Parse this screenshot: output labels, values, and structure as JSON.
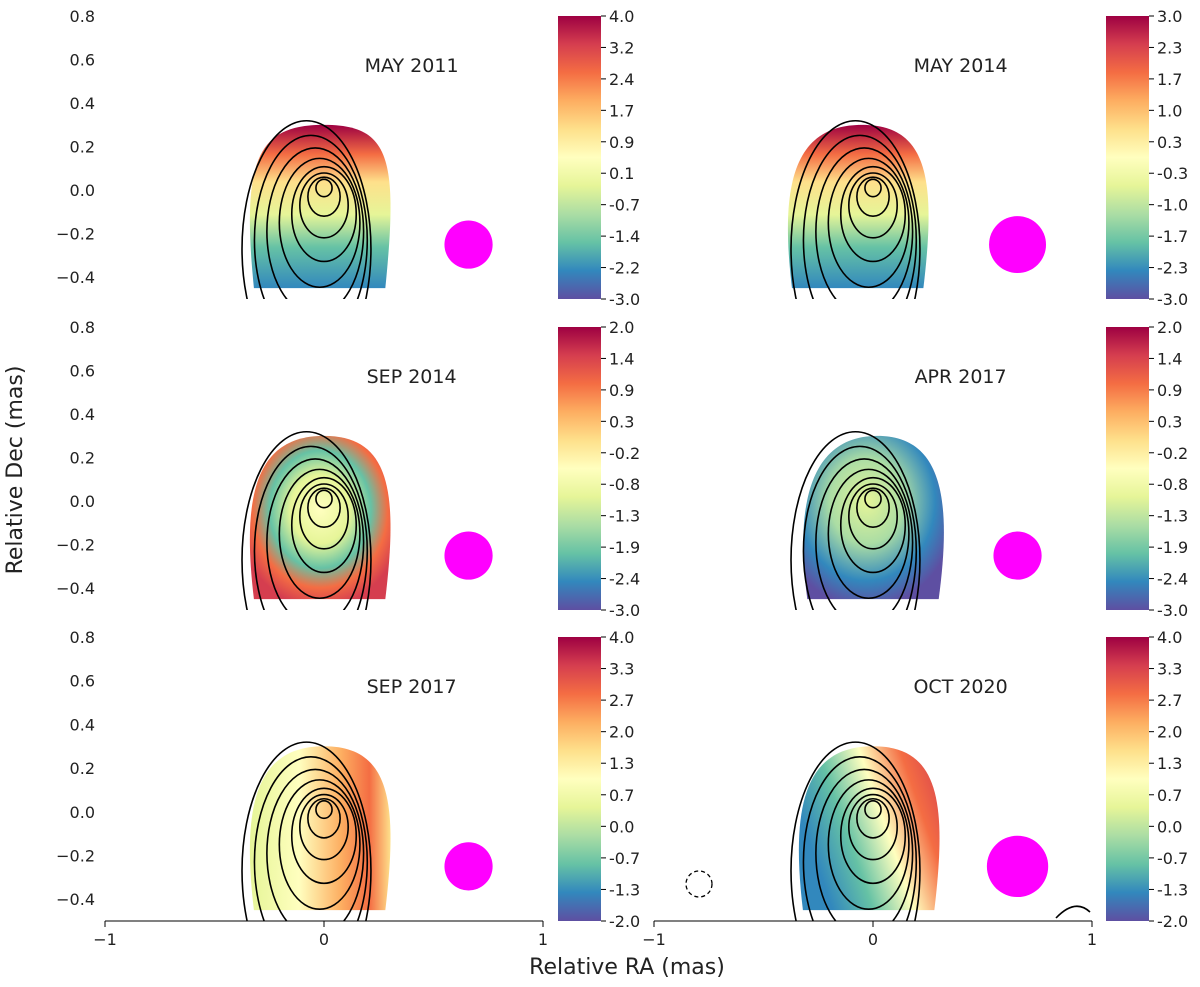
{
  "figure": {
    "xlabel": "Relative RA (mas)",
    "ylabel": "Relative Dec (mas)",
    "colors": {
      "beam": "#ff00ff",
      "contour": "#000000",
      "colormap": [
        "#5e4fa2",
        "#3288bd",
        "#66c2a5",
        "#abdda4",
        "#e6f598",
        "#ffffbf",
        "#fee08b",
        "#fdae61",
        "#f46d43",
        "#d53e4f",
        "#9e0142"
      ]
    }
  },
  "chart_data": [
    {
      "type": "heatmap",
      "title": "MAY 2011",
      "xlim": [
        -1,
        1
      ],
      "ylim": [
        -0.5,
        0.8
      ],
      "xticks": [
        "−1",
        "0",
        "1"
      ],
      "yticks": [
        "0.8",
        "0.6",
        "0.4",
        "0.2",
        "0.0",
        "−0.2",
        "−0.4"
      ],
      "colorbar": {
        "range": [
          -3.0,
          4.0
        ],
        "ticks": [
          "4.0",
          "3.2",
          "2.4",
          "1.7",
          "0.9",
          "0.1",
          "-0.7",
          "-1.4",
          "-2.2",
          "-3.0"
        ]
      },
      "beam": {
        "x": 0.66,
        "y": -0.25,
        "r": 0.11
      },
      "contour_center": [
        0.0,
        0.01
      ],
      "map_center": [
        0.0,
        0.1
      ],
      "map_gradient": "north-hot"
    },
    {
      "type": "heatmap",
      "title": "MAY 2014",
      "xlim": [
        -1,
        1
      ],
      "ylim": [
        -0.5,
        0.8
      ],
      "xticks": [
        "−1",
        "0",
        "1"
      ],
      "yticks": [
        "0.8",
        "0.6",
        "0.4",
        "0.2",
        "0.0",
        "−0.2",
        "−0.4"
      ],
      "colorbar": {
        "range": [
          -3.0,
          3.0
        ],
        "ticks": [
          "3.0",
          "2.3",
          "1.7",
          "1.0",
          "0.3",
          "-0.3",
          "-1.0",
          "-1.7",
          "-2.3",
          "-3.0"
        ]
      },
      "beam": {
        "x": 0.66,
        "y": -0.25,
        "r": 0.13
      },
      "contour_center": [
        0.0,
        0.01
      ],
      "map_center": [
        -0.05,
        0.0
      ],
      "map_gradient": "north-hot"
    },
    {
      "type": "heatmap",
      "title": "SEP 2014",
      "xlim": [
        -1,
        1
      ],
      "ylim": [
        -0.5,
        0.8
      ],
      "xticks": [
        "−1",
        "0",
        "1"
      ],
      "yticks": [
        "0.8",
        "0.6",
        "0.4",
        "0.2",
        "0.0",
        "−0.2",
        "−0.4"
      ],
      "colorbar": {
        "range": [
          -3.0,
          2.0
        ],
        "ticks": [
          "2.0",
          "1.4",
          "0.9",
          "0.3",
          "-0.2",
          "-0.8",
          "-1.3",
          "-1.9",
          "-2.4",
          "-3.0"
        ]
      },
      "beam": {
        "x": 0.66,
        "y": -0.25,
        "r": 0.11
      },
      "contour_center": [
        0.0,
        0.01
      ],
      "map_center": [
        0.0,
        0.0
      ],
      "map_gradient": "edge-hot"
    },
    {
      "type": "heatmap",
      "title": "APR 2017",
      "xlim": [
        -1,
        1
      ],
      "ylim": [
        -0.5,
        0.8
      ],
      "xticks": [
        "−1",
        "0",
        "1"
      ],
      "yticks": [
        "0.8",
        "0.6",
        "0.4",
        "0.2",
        "0.0",
        "−0.2",
        "−0.4"
      ],
      "colorbar": {
        "range": [
          -3.0,
          2.0
        ],
        "ticks": [
          "2.0",
          "1.4",
          "0.9",
          "0.3",
          "-0.2",
          "-0.8",
          "-1.3",
          "-1.9",
          "-2.4",
          "-3.0"
        ]
      },
      "beam": {
        "x": 0.66,
        "y": -0.25,
        "r": 0.11
      },
      "contour_center": [
        0.0,
        0.01
      ],
      "map_center": [
        0.02,
        -0.05
      ],
      "map_gradient": "cool"
    },
    {
      "type": "heatmap",
      "title": "SEP 2017",
      "xlim": [
        -1,
        1
      ],
      "ylim": [
        -0.5,
        0.8
      ],
      "xticks": [
        "−1",
        "0",
        "1"
      ],
      "yticks": [
        "0.8",
        "0.6",
        "0.4",
        "0.2",
        "0.0",
        "−0.2",
        "−0.4"
      ],
      "colorbar": {
        "range": [
          -2.0,
          4.0
        ],
        "ticks": [
          "4.0",
          "3.3",
          "2.7",
          "2.0",
          "1.3",
          "0.7",
          "0.0",
          "-0.7",
          "-1.3",
          "-2.0"
        ]
      },
      "beam": {
        "x": 0.66,
        "y": -0.25,
        "r": 0.11
      },
      "contour_center": [
        0.0,
        0.01
      ],
      "map_center": [
        0.0,
        0.0
      ],
      "map_gradient": "east-hot"
    },
    {
      "type": "heatmap",
      "title": "OCT 2020",
      "xlim": [
        -1,
        1
      ],
      "ylim": [
        -0.5,
        0.8
      ],
      "xticks": [
        "−1",
        "0",
        "1"
      ],
      "yticks": [
        "0.8",
        "0.6",
        "0.4",
        "0.2",
        "0.0",
        "−0.2",
        "−0.4"
      ],
      "colorbar": {
        "range": [
          -2.0,
          4.0
        ],
        "ticks": [
          "4.0",
          "3.3",
          "2.7",
          "2.0",
          "1.3",
          "0.7",
          "0.0",
          "-0.7",
          "-1.3",
          "-2.0"
        ]
      },
      "beam": {
        "x": 0.66,
        "y": -0.25,
        "r": 0.14
      },
      "contour_center": [
        0.0,
        0.01
      ],
      "map_center": [
        0.0,
        0.0
      ],
      "map_gradient": "west-cool-east-hot"
    }
  ]
}
